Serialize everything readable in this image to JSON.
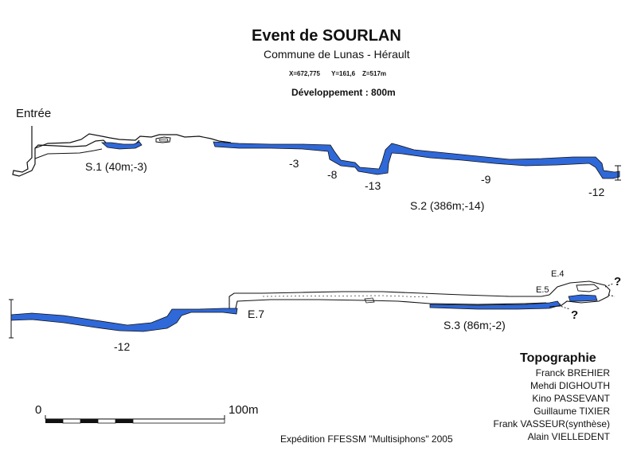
{
  "header": {
    "title": "Event de SOURLAN",
    "subtitle": "Commune de Lunas - Hérault",
    "coords": {
      "x": "X=672,775",
      "y": "Y=161,6",
      "z": "Z=517m"
    },
    "development": "Développement : 800m"
  },
  "labels": {
    "entrance": "Entrée",
    "s1": "S.1 (40m;-3)",
    "s2": "S.2 (386m;-14)",
    "s3": "S.3 (86m;-2)",
    "d_minus3": "-3",
    "d_minus8": "-8",
    "d_minus13": "-13",
    "d_minus9": "-9",
    "d_minus12_upper": "-12",
    "d_minus12_lower": "-12",
    "e7": "E.7",
    "e5": "E.5",
    "e4": "E.4",
    "q1": "?",
    "q2": "?"
  },
  "credits": {
    "heading": "Topographie",
    "names": [
      "Franck BREHIER",
      "Mehdi DIGHOUTH",
      "Kino PASSEVANT",
      "Guillaume TIXIER",
      "Frank VASSEUR(synthèse)",
      "Alain VIELLEDENT"
    ]
  },
  "scale": {
    "zero": "0",
    "max": "100m"
  },
  "footer": "Expédition FFESSM \"Multisiphons\" 2005",
  "colors": {
    "water": "#2f68d8",
    "ink": "#111111",
    "paper": "#ffffff"
  }
}
